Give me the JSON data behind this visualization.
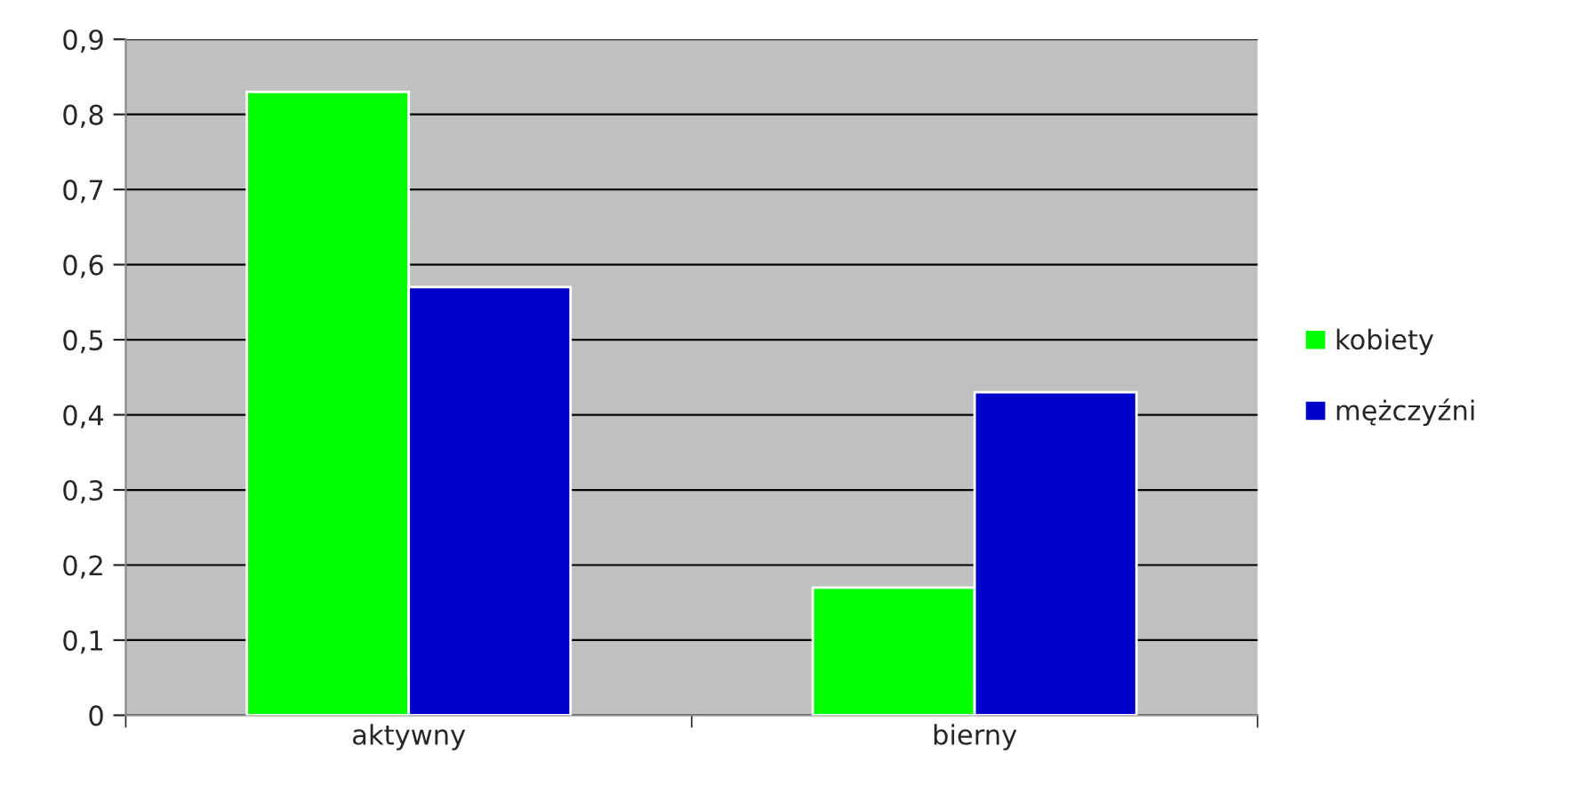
{
  "chart_data": {
    "type": "bar",
    "categories": [
      "aktywny",
      "bierny"
    ],
    "series": [
      {
        "name": "kobiety",
        "color": "#00ff00",
        "values": [
          0.83,
          0.17
        ]
      },
      {
        "name": "mężczyźni",
        "color": "#0000cc",
        "values": [
          0.57,
          0.43
        ]
      }
    ],
    "ylim": [
      0,
      0.9
    ],
    "yticks": [
      0,
      {
        "value": 0.1,
        "label": "0,1"
      },
      {
        "value": 0.2,
        "label": "0,2"
      },
      {
        "value": 0.3,
        "label": "0,3"
      },
      {
        "value": 0.4,
        "label": "0,4"
      },
      {
        "value": 0.5,
        "label": "0,5"
      },
      {
        "value": 0.6,
        "label": "0,6"
      },
      {
        "value": 0.7,
        "label": "0,7"
      },
      {
        "value": 0.8,
        "label": "0,8"
      },
      {
        "value": 0.9,
        "label": "0,9"
      }
    ],
    "grid": "y",
    "legend": "right"
  }
}
